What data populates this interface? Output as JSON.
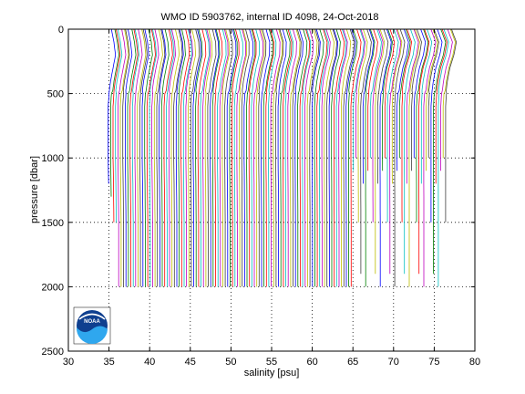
{
  "chart_data": {
    "type": "line",
    "title": "WMO ID 5903762, internal ID 4098, 24-Oct-2018",
    "xlabel": "salinity [psu]",
    "ylabel": "pressure [dbar]",
    "xlim": [
      30,
      80
    ],
    "ylim": [
      0,
      2500
    ],
    "y_reversed": true,
    "grid": true,
    "xticks": [
      30,
      35,
      40,
      45,
      50,
      55,
      60,
      65,
      70,
      75,
      80
    ],
    "yticks": [
      0,
      500,
      1000,
      1500,
      2000,
      2500
    ],
    "profile_style": "waterfall of salinity profiles; each successive profile offset by about 0.3 psu from the previous one",
    "profile_count": 140,
    "first_profile": {
      "pressure": [
        0,
        100,
        200,
        300,
        400,
        500,
        600,
        800,
        1000,
        1200,
        1500
      ],
      "salinity": [
        35.3,
        35.6,
        35.8,
        35.5,
        35.2,
        35.0,
        34.9,
        34.9,
        34.9,
        34.95,
        35.0
      ]
    },
    "last_profile": {
      "pressure": [
        0,
        100,
        200,
        300,
        400,
        500,
        600,
        800,
        1000,
        1200,
        1500,
        1900
      ],
      "salinity": [
        77.2,
        77.8,
        77.5,
        77.0,
        76.7,
        76.5,
        76.4,
        76.4,
        76.4,
        76.4,
        76.4,
        76.4
      ]
    },
    "profile_max_pressure_typical": 2000,
    "series_colors": [
      "#0000ff",
      "#008000",
      "#ff0000",
      "#00bfbf",
      "#bf00bf",
      "#bfbf00",
      "#404040"
    ],
    "legend": "none",
    "logo": {
      "text": "NOAA",
      "icon": "noaa-logo-icon",
      "placement": "bottom-left"
    }
  }
}
